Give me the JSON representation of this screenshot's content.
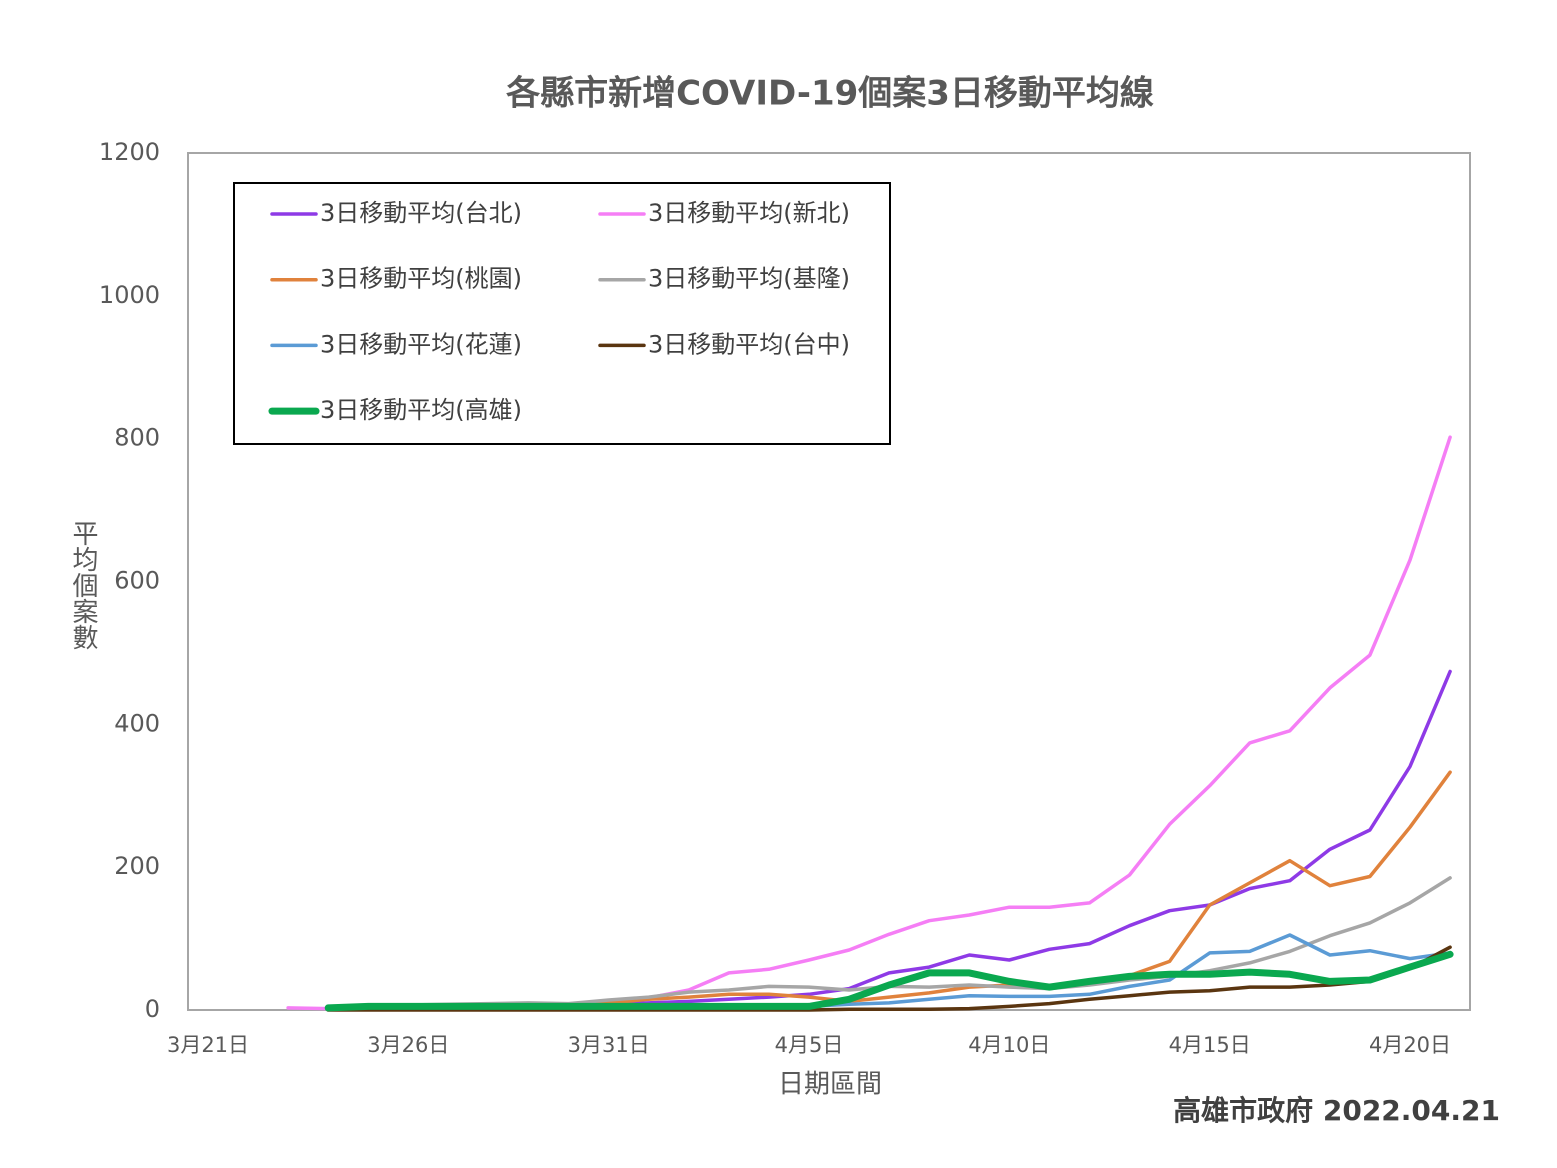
{
  "chart_data": {
    "type": "line",
    "title": "各縣市新增COVID-19個案3日移動平均線",
    "x_label": "日期區間",
    "y_label": "平均個案數",
    "footer": "高雄市政府 2022.04.21",
    "categories": [
      "3月21日",
      null,
      null,
      null,
      null,
      "3月26日",
      null,
      null,
      null,
      null,
      "3月31日",
      null,
      null,
      null,
      null,
      "4月5日",
      null,
      null,
      null,
      null,
      "4月10日",
      null,
      null,
      null,
      null,
      "4月15日",
      null,
      null,
      null,
      null,
      "4月20日",
      null
    ],
    "ylim": [
      0,
      1200
    ],
    "yticks": [
      0,
      200,
      400,
      600,
      800,
      1000,
      1200
    ],
    "series": [
      {
        "name": "3日移動平均(台北)",
        "color": "#8e3ae6",
        "width": 3.5,
        "values": [
          null,
          null,
          null,
          2,
          3,
          4,
          5,
          6,
          7,
          7,
          8,
          10,
          12,
          15,
          18,
          22,
          30,
          52,
          60,
          77,
          70,
          85,
          93,
          118,
          139,
          147,
          170,
          181,
          225,
          252,
          341,
          474
        ]
      },
      {
        "name": "3日移動平均(新北)",
        "color": "#f57ef5",
        "width": 3.5,
        "values": [
          null,
          null,
          3,
          2,
          5,
          6,
          7,
          8,
          8,
          8,
          12,
          17,
          28,
          52,
          57,
          70,
          84,
          106,
          125,
          133,
          144,
          144,
          150,
          189,
          260,
          314,
          374,
          391,
          451,
          497,
          630,
          802
        ]
      },
      {
        "name": "3日移動平均(桃園)",
        "color": "#e0823c",
        "width": 3.5,
        "values": [
          null,
          null,
          null,
          2,
          3,
          4,
          5,
          6,
          7,
          8,
          10,
          15,
          18,
          22,
          22,
          18,
          12,
          18,
          24,
          32,
          35,
          33,
          37,
          48,
          68,
          147,
          178,
          209,
          174,
          187,
          256,
          333
        ]
      },
      {
        "name": "3日移動平均(基隆)",
        "color": "#a6a6a6",
        "width": 3.5,
        "values": [
          null,
          null,
          null,
          3,
          5,
          7,
          8,
          9,
          10,
          9,
          14,
          18,
          25,
          28,
          33,
          32,
          28,
          33,
          32,
          35,
          32,
          30,
          35,
          42,
          47,
          55,
          66,
          82,
          104,
          122,
          150,
          185
        ]
      },
      {
        "name": "3日移動平均(花蓮)",
        "color": "#5b9bd5",
        "width": 3.5,
        "values": [
          null,
          null,
          null,
          1,
          2,
          2,
          3,
          3,
          4,
          4,
          5,
          5,
          5,
          5,
          5,
          5,
          8,
          10,
          15,
          20,
          19,
          19,
          22,
          33,
          42,
          80,
          82,
          105,
          77,
          83,
          72,
          80
        ]
      },
      {
        "name": "3日移動平均(台中)",
        "color": "#5a3510",
        "width": 3.5,
        "values": [
          null,
          null,
          null,
          0,
          0,
          0,
          0,
          0,
          0,
          0,
          0,
          0,
          0,
          0,
          0,
          0,
          1,
          1,
          1,
          2,
          5,
          9,
          15,
          20,
          25,
          27,
          32,
          32,
          35,
          40,
          58,
          88
        ]
      },
      {
        "name": "3日移動平均(高雄)",
        "color": "#0aa84f",
        "width": 7,
        "values": [
          null,
          null,
          null,
          3,
          5,
          5,
          5,
          5,
          5,
          5,
          5,
          5,
          5,
          5,
          5,
          5,
          15,
          35,
          52,
          52,
          40,
          32,
          40,
          47,
          50,
          50,
          53,
          50,
          40,
          42,
          60,
          78
        ]
      }
    ]
  }
}
